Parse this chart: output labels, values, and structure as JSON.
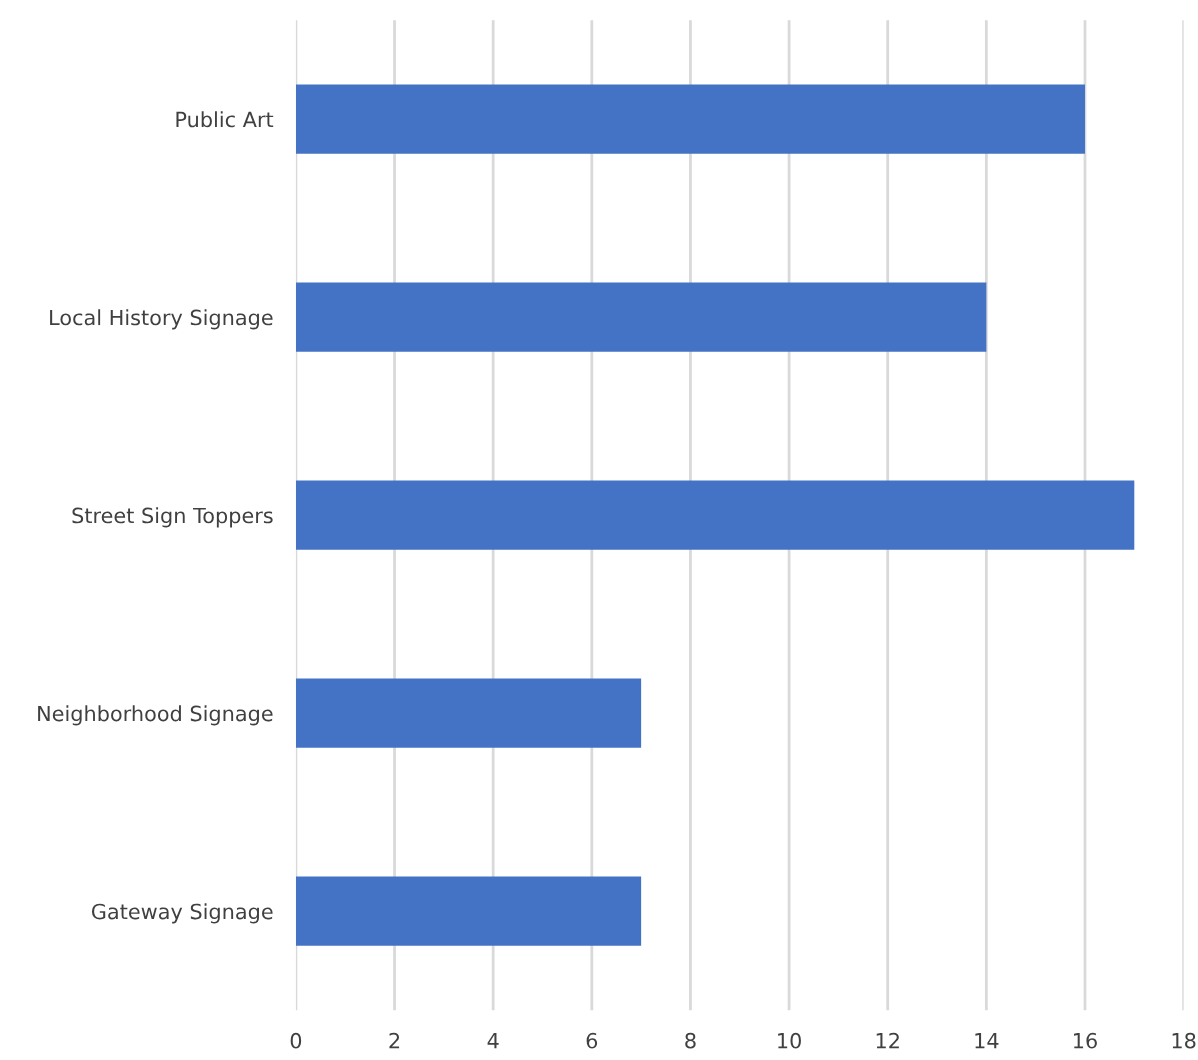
{
  "chart_data": {
    "type": "bar",
    "orientation": "horizontal",
    "categories": [
      "Public Art",
      "Local History Signage",
      "Street Sign Toppers",
      "Neighborhood Signage",
      "Gateway Signage"
    ],
    "values": [
      16,
      14,
      17,
      7,
      7
    ],
    "color": "#4472c4",
    "xlim": [
      0,
      18
    ],
    "xticks": [
      0,
      2,
      4,
      6,
      8,
      10,
      12,
      14,
      16,
      18
    ],
    "grid": "x",
    "legend": false
  }
}
